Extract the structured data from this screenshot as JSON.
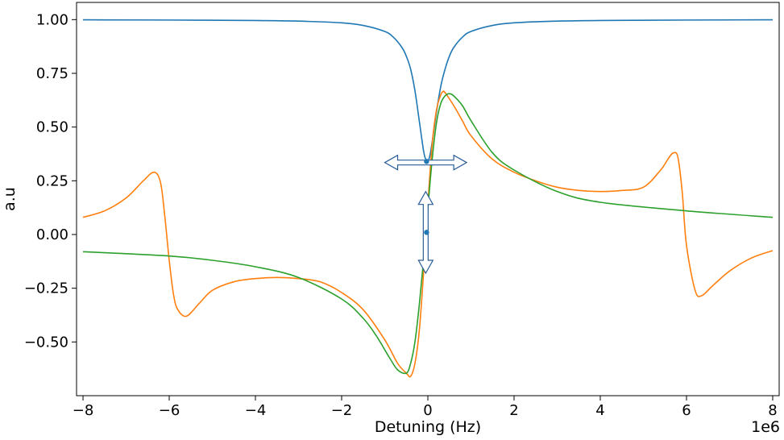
{
  "chart_data": {
    "type": "line",
    "xlabel": "Detuning (Hz)",
    "ylabel": "a.u",
    "x_offset_text": "1e6",
    "x_scale": 1000000,
    "xlim": [
      -8150000,
      8150000
    ],
    "ylim": [
      -0.75,
      1.08
    ],
    "x_ticks": [
      -8000000,
      -6000000,
      -4000000,
      -2000000,
      0,
      2000000,
      4000000,
      6000000,
      8000000
    ],
    "x_tick_labels": [
      "−8",
      "−6",
      "−4",
      "−2",
      "0",
      "2",
      "4",
      "6",
      "8"
    ],
    "y_ticks": [
      1.0,
      0.75,
      0.5,
      0.25,
      0.0,
      -0.25,
      -0.5
    ],
    "y_tick_labels": [
      "1.00",
      "0.75",
      "0.50",
      "0.25",
      "0.00",
      "−0.25",
      "−0.50"
    ],
    "grid": false,
    "series": [
      {
        "color": "#1f77b4",
        "x": [
          -8000000,
          -6000000,
          -4000000,
          -3000000,
          -2000000,
          -1500000,
          -1000000,
          -800000,
          -600000,
          -500000,
          -400000,
          -300000,
          -200000,
          -100000,
          -50000,
          0,
          50000,
          100000,
          200000,
          300000,
          400000,
          500000,
          600000,
          800000,
          1000000,
          1500000,
          2000000,
          3000000,
          4000000,
          6000000,
          8000000
        ],
        "y": [
          0.999,
          0.998,
          0.996,
          0.993,
          0.985,
          0.973,
          0.945,
          0.918,
          0.87,
          0.83,
          0.77,
          0.67,
          0.53,
          0.39,
          0.35,
          0.34,
          0.37,
          0.43,
          0.57,
          0.69,
          0.77,
          0.83,
          0.87,
          0.918,
          0.945,
          0.973,
          0.985,
          0.993,
          0.996,
          0.998,
          0.999
        ]
      },
      {
        "color": "#ff7f0e",
        "x": [
          -8000000,
          -7500000,
          -7000000,
          -6600000,
          -6350000,
          -6200000,
          -6100000,
          -6000000,
          -5900000,
          -5800000,
          -5600000,
          -5300000,
          -5000000,
          -4500000,
          -4000000,
          -3500000,
          -3000000,
          -2500000,
          -2000000,
          -1500000,
          -1000000,
          -700000,
          -500000,
          -400000,
          -300000,
          -200000,
          -100000,
          0,
          100000,
          200000,
          300000,
          350000,
          400000,
          600000,
          800000,
          1000000,
          1500000,
          2000000,
          2500000,
          3000000,
          3500000,
          4000000,
          4500000,
          5000000,
          5400000,
          5600000,
          5700000,
          5800000,
          5900000,
          6000000,
          6200000,
          6350000,
          6600000,
          7000000,
          7500000,
          8000000
        ],
        "y": [
          0.08,
          0.11,
          0.17,
          0.25,
          0.29,
          0.24,
          0.08,
          -0.12,
          -0.28,
          -0.35,
          -0.38,
          -0.32,
          -0.26,
          -0.22,
          -0.205,
          -0.2,
          -0.205,
          -0.22,
          -0.27,
          -0.35,
          -0.49,
          -0.6,
          -0.645,
          -0.66,
          -0.6,
          -0.45,
          -0.18,
          0.14,
          0.42,
          0.58,
          0.65,
          0.665,
          0.66,
          0.6,
          0.53,
          0.46,
          0.35,
          0.29,
          0.25,
          0.22,
          0.205,
          0.2,
          0.205,
          0.22,
          0.3,
          0.36,
          0.38,
          0.36,
          0.2,
          -0.05,
          -0.26,
          -0.285,
          -0.24,
          -0.17,
          -0.11,
          -0.075
        ]
      },
      {
        "color": "#2ca02c",
        "x": [
          -8000000,
          -6000000,
          -5000000,
          -4000000,
          -3000000,
          -2000000,
          -1500000,
          -1200000,
          -900000,
          -700000,
          -500000,
          -400000,
          -300000,
          -200000,
          -100000,
          0,
          100000,
          200000,
          300000,
          400000,
          500000,
          600000,
          800000,
          1000000,
          1500000,
          2000000,
          3000000,
          4000000,
          6000000,
          8000000
        ],
        "y": [
          -0.08,
          -0.1,
          -0.12,
          -0.15,
          -0.2,
          -0.3,
          -0.39,
          -0.47,
          -0.57,
          -0.63,
          -0.645,
          -0.6,
          -0.5,
          -0.33,
          -0.12,
          0.12,
          0.35,
          0.52,
          0.61,
          0.645,
          0.655,
          0.645,
          0.6,
          0.53,
          0.38,
          0.3,
          0.2,
          0.15,
          0.11,
          0.08
        ]
      }
    ],
    "markers": [
      {
        "x": -30000,
        "y": 0.34,
        "color": "#1f77b4"
      },
      {
        "x": -30000,
        "y": 0.01,
        "color": "#1f77b4"
      }
    ],
    "annotations": [
      {
        "kind": "double-arrow-horizontal",
        "x_from": -1000000,
        "x_to": 900000,
        "y": 0.335,
        "stroke": "#2a5d97"
      },
      {
        "kind": "double-arrow-vertical",
        "x": -50000,
        "y_from": 0.2,
        "y_to": -0.18,
        "stroke": "#2a5d97"
      }
    ]
  }
}
